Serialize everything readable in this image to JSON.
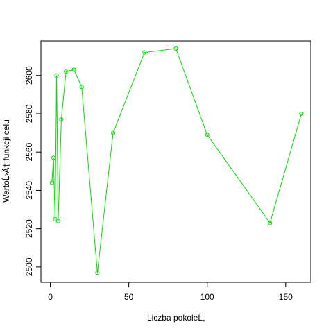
{
  "chart_data": {
    "type": "line",
    "title": "",
    "xlabel": "Liczba pokoleĹ„",
    "ylabel": "WartoĹ›Ä‡ funkcji celu",
    "xlim": [
      -6,
      166
    ],
    "ylim": [
      2492,
      2618
    ],
    "x_ticks": [
      0,
      50,
      100,
      150
    ],
    "y_ticks": [
      2500,
      2520,
      2540,
      2560,
      2580,
      2600
    ],
    "grid": false,
    "legend": "none",
    "series": [
      {
        "x": [
          1,
          2,
          3,
          4,
          5,
          7,
          10,
          15,
          20,
          30,
          40,
          60,
          80,
          100,
          140,
          160
        ],
        "y": [
          2544,
          2557,
          2525,
          2600,
          2524,
          2577,
          2602,
          2603,
          2594,
          2497,
          2570,
          2612,
          2614,
          2569,
          2523,
          2580
        ],
        "color": "#00e000",
        "marker": "open-circle"
      }
    ]
  }
}
